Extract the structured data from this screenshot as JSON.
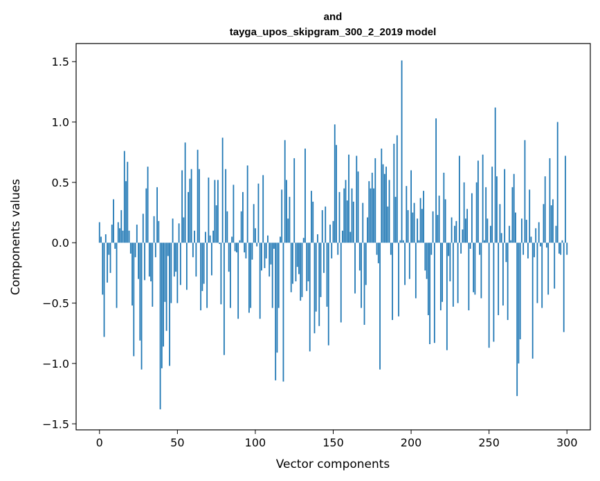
{
  "chart_data": {
    "type": "bar",
    "title_lines": [
      "and",
      "tayga_upos_skipgram_300_2_2019 model"
    ],
    "xlabel": "Vector components",
    "ylabel": "Components values",
    "xlim": [
      -15,
      315
    ],
    "ylim": [
      -1.55,
      1.65
    ],
    "xticks": [
      0,
      50,
      100,
      150,
      200,
      250,
      300
    ],
    "yticks": [
      -1.5,
      -1.0,
      -0.5,
      0.0,
      0.5,
      1.0,
      1.5
    ],
    "ytick_labels": [
      "−1.5",
      "−1.0",
      "−0.5",
      "0.0",
      "0.5",
      "1.0",
      "1.5"
    ],
    "bar_color": "#1f77b4",
    "values": [
      0.17,
      0.05,
      -0.43,
      -0.78,
      0.07,
      -0.33,
      -0.1,
      -0.25,
      0.15,
      0.36,
      -0.05,
      -0.54,
      0.17,
      0.12,
      0.27,
      0.1,
      0.76,
      0.51,
      0.67,
      0.1,
      -0.09,
      -0.52,
      -0.94,
      -0.12,
      0.15,
      -0.3,
      -0.81,
      -1.05,
      0.24,
      -0.31,
      0.45,
      0.63,
      -0.28,
      -0.32,
      -0.53,
      0.22,
      -0.12,
      0.46,
      0.18,
      -1.38,
      -1.04,
      -0.86,
      -0.49,
      -0.73,
      -0.11,
      -1.02,
      -0.5,
      0.2,
      -0.28,
      -0.24,
      -0.5,
      0.16,
      -0.35,
      0.6,
      0.21,
      0.83,
      -0.39,
      0.42,
      0.53,
      0.61,
      -0.12,
      0.1,
      -0.28,
      0.77,
      0.61,
      -0.56,
      -0.4,
      -0.34,
      0.09,
      -0.54,
      0.54,
      0.06,
      -0.27,
      0.1,
      0.52,
      0.31,
      0.52,
      -0.01,
      -0.51,
      0.87,
      -0.93,
      0.61,
      0.26,
      -0.24,
      -0.54,
      0.05,
      0.48,
      -0.07,
      -0.08,
      -0.63,
      0.02,
      0.26,
      0.42,
      -0.08,
      -0.13,
      0.64,
      -0.58,
      -0.54,
      -0.14,
      0.32,
      0.12,
      -0.03,
      0.49,
      -0.63,
      -0.23,
      0.56,
      -0.21,
      -0.13,
      0.06,
      -0.28,
      -0.18,
      -0.54,
      -0.05,
      -1.14,
      -0.91,
      -0.54,
      0.05,
      0.44,
      -1.15,
      0.85,
      0.52,
      0.2,
      0.38,
      -0.41,
      -0.34,
      0.7,
      -0.32,
      -0.2,
      -0.26,
      -0.48,
      -0.45,
      0.04,
      0.78,
      -0.4,
      -0.32,
      -0.9,
      0.43,
      0.34,
      -0.75,
      -0.57,
      0.07,
      -0.69,
      -0.45,
      0.27,
      -0.25,
      0.3,
      -0.53,
      -0.85,
      0.15,
      -0.13,
      0.18,
      0.98,
      0.81,
      -0.1,
      0.42,
      -0.66,
      0.1,
      0.45,
      0.52,
      0.35,
      0.73,
      0.09,
      0.45,
      0.34,
      -0.42,
      0.72,
      0.59,
      -0.23,
      -0.54,
      0.33,
      -0.68,
      -0.35,
      0.21,
      0.51,
      0.45,
      0.58,
      0.45,
      0.7,
      -0.1,
      -0.17,
      -1.05,
      0.78,
      0.65,
      0.57,
      0.63,
      0.3,
      0.52,
      -0.1,
      -0.64,
      0.82,
      0.38,
      0.89,
      -0.61,
      0.02,
      1.51,
      0.02,
      -0.35,
      0.47,
      0.27,
      -0.3,
      0.6,
      0.25,
      0.33,
      -0.46,
      0.2,
      0.02,
      0.37,
      0.28,
      0.43,
      -0.23,
      -0.3,
      -0.6,
      -0.84,
      -0.1,
      0.26,
      -0.83,
      1.03,
      0.23,
      0.39,
      -0.56,
      -0.49,
      0.58,
      0.36,
      -0.89,
      -0.11,
      -0.32,
      0.21,
      -0.53,
      0.14,
      0.18,
      -0.5,
      0.72,
      -0.09,
      0.11,
      0.5,
      0.2,
      0.28,
      -0.56,
      -0.05,
      0.41,
      -0.41,
      -0.43,
      0.5,
      0.68,
      -0.1,
      -0.46,
      0.73,
      0.02,
      0.46,
      0.2,
      -0.87,
      0.14,
      0.63,
      -0.82,
      1.12,
      0.55,
      -0.6,
      0.32,
      0.08,
      -0.52,
      0.61,
      -0.16,
      -0.64,
      0.14,
      0.02,
      0.46,
      0.57,
      0.25,
      -1.27,
      -1.0,
      -0.8,
      0.2,
      -0.1,
      0.85,
      0.19,
      -0.13,
      0.44,
      0.05,
      -0.96,
      -0.12,
      0.12,
      -0.5,
      0.17,
      -0.03,
      -0.54,
      0.32,
      0.55,
      -0.04,
      -0.43,
      0.7,
      0.31,
      0.36,
      -0.38,
      0.14,
      1.0,
      -0.09,
      -0.1,
      0.02,
      -0.74,
      0.72,
      -0.1
    ]
  }
}
